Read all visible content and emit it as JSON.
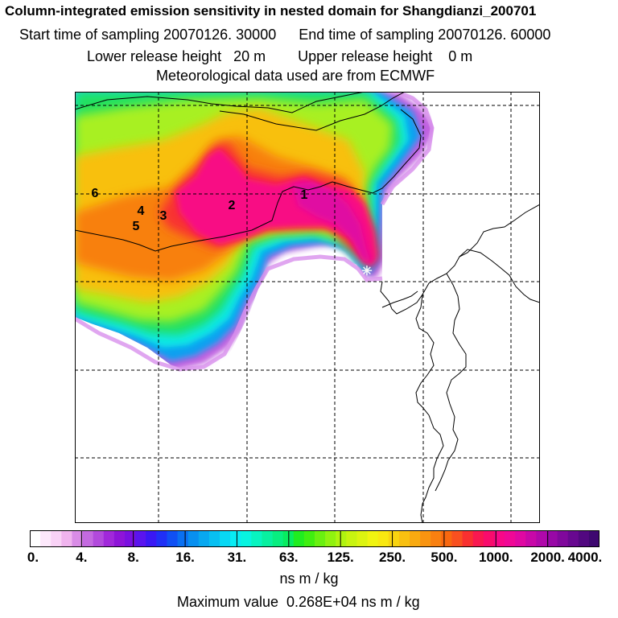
{
  "title": {
    "line1": "Column-integrated emission sensitivity in nested domain for Shangdianzi_200701",
    "start_label": "Start time of sampling 20070126. 30000",
    "end_label": "End time of sampling 20070126. 60000",
    "lower_label": "Lower release height   20 m",
    "upper_label": "Upper release height    0 m",
    "met_label": "Meteorological data used are from ECMWF"
  },
  "map": {
    "point_labels": [
      "1",
      "2",
      "3",
      "4",
      "5",
      "6"
    ],
    "receptor_symbol": "✳"
  },
  "colorbar": {
    "ticks": [
      "0.",
      "4.",
      "8.",
      "16.",
      "31.",
      "63.",
      "125.",
      "250.",
      "500.",
      "1000.",
      "2000.",
      "4000."
    ],
    "colors": [
      "#ffffff",
      "#fde8fb",
      "#f9d2f6",
      "#f0b4ee",
      "#d98ce6",
      "#c46ae0",
      "#b24adc",
      "#a128da",
      "#8e14d8",
      "#7a10e0",
      "#5a14ee",
      "#3a18f4",
      "#2030f6",
      "#1050f4",
      "#0a70f2",
      "#0890f0",
      "#08a8f0",
      "#08c0f2",
      "#08d8f4",
      "#08ecf4",
      "#08f4e0",
      "#08f4c0",
      "#08f0a0",
      "#08ee80",
      "#08ec60",
      "#20ec20",
      "#40ee10",
      "#6af010",
      "#90f210",
      "#b0f410",
      "#c8f410",
      "#dcf410",
      "#f0f410",
      "#f8e810",
      "#f8d410",
      "#f8c010",
      "#f8aa10",
      "#f89410",
      "#f88010",
      "#f86810",
      "#f85020",
      "#f83030",
      "#f81850",
      "#f80c6c",
      "#f80888",
      "#f00896",
      "#e008a2",
      "#c808a8",
      "#b008aa",
      "#9808a6",
      "#80089c",
      "#680890",
      "#520880",
      "#3e0870"
    ]
  },
  "units": "ns m / kg",
  "max_value": "Maximum value  0.268E+04 ns m / kg"
}
